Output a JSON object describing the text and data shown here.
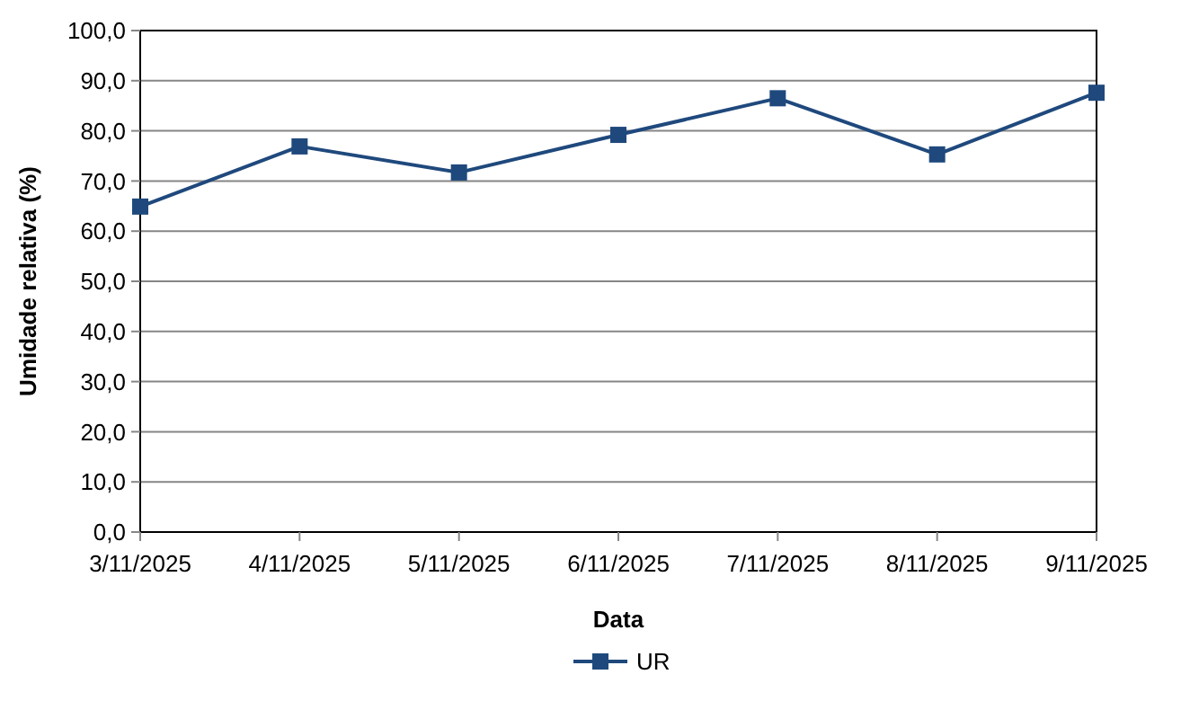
{
  "chart_data": {
    "type": "line",
    "xlabel": "Data",
    "ylabel": "Umidade relativa (%)",
    "categories": [
      "3/11/2025",
      "4/11/2025",
      "5/11/2025",
      "6/11/2025",
      "7/11/2025",
      "8/11/2025",
      "9/11/2025"
    ],
    "series": [
      {
        "name": "UR",
        "color": "#1f497d",
        "values": [
          64.9,
          76.9,
          71.7,
          79.2,
          86.5,
          75.3,
          87.6
        ]
      }
    ],
    "ylim": [
      0,
      100
    ],
    "yticks": [
      {
        "value": 0,
        "label": "0,0"
      },
      {
        "value": 10,
        "label": "10,0"
      },
      {
        "value": 20,
        "label": "20,0"
      },
      {
        "value": 30,
        "label": "30,0"
      },
      {
        "value": 40,
        "label": "40,0"
      },
      {
        "value": 50,
        "label": "50,0"
      },
      {
        "value": 60,
        "label": "60,0"
      },
      {
        "value": 70,
        "label": "70,0"
      },
      {
        "value": 80,
        "label": "80,0"
      },
      {
        "value": 90,
        "label": "90,0"
      },
      {
        "value": 100,
        "label": "100,0"
      }
    ],
    "grid": "y",
    "legend": "bottom",
    "marker": "square",
    "line_style": "solid"
  }
}
